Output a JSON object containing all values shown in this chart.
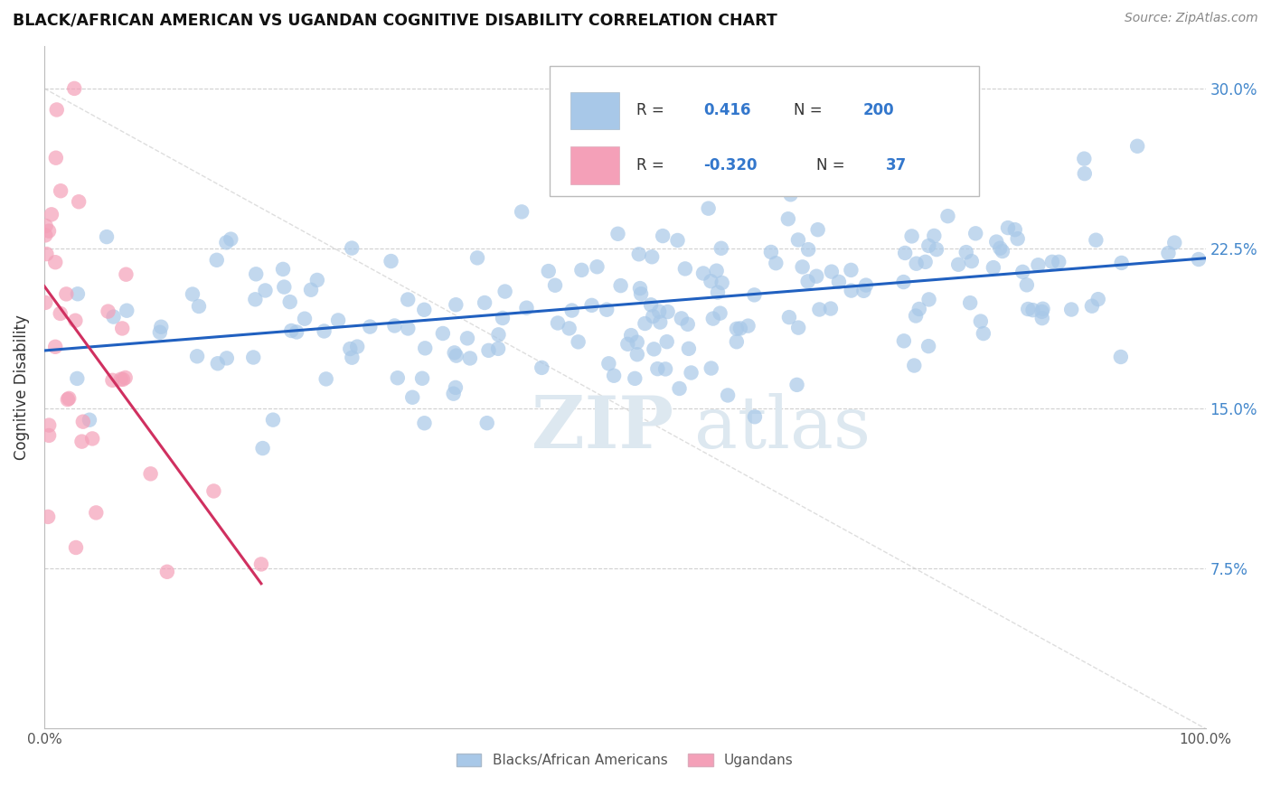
{
  "title": "BLACK/AFRICAN AMERICAN VS UGANDAN COGNITIVE DISABILITY CORRELATION CHART",
  "source": "Source: ZipAtlas.com",
  "ylabel": "Cognitive Disability",
  "xlim": [
    0,
    1.0
  ],
  "ylim": [
    0,
    0.32
  ],
  "ytick_labels_right": [
    "7.5%",
    "15.0%",
    "22.5%",
    "30.0%"
  ],
  "ytick_values_right": [
    0.075,
    0.15,
    0.225,
    0.3
  ],
  "blue_R": 0.416,
  "blue_N": 200,
  "pink_R": -0.32,
  "pink_N": 37,
  "blue_color": "#a8c8e8",
  "pink_color": "#f4a0b8",
  "blue_line_color": "#2060c0",
  "pink_line_color": "#d03060",
  "grid_color": "#cccccc",
  "background_color": "#ffffff",
  "watermark_zip": "ZIP",
  "watermark_atlas": "atlas",
  "blue_seed": 12,
  "pink_seed": 99
}
